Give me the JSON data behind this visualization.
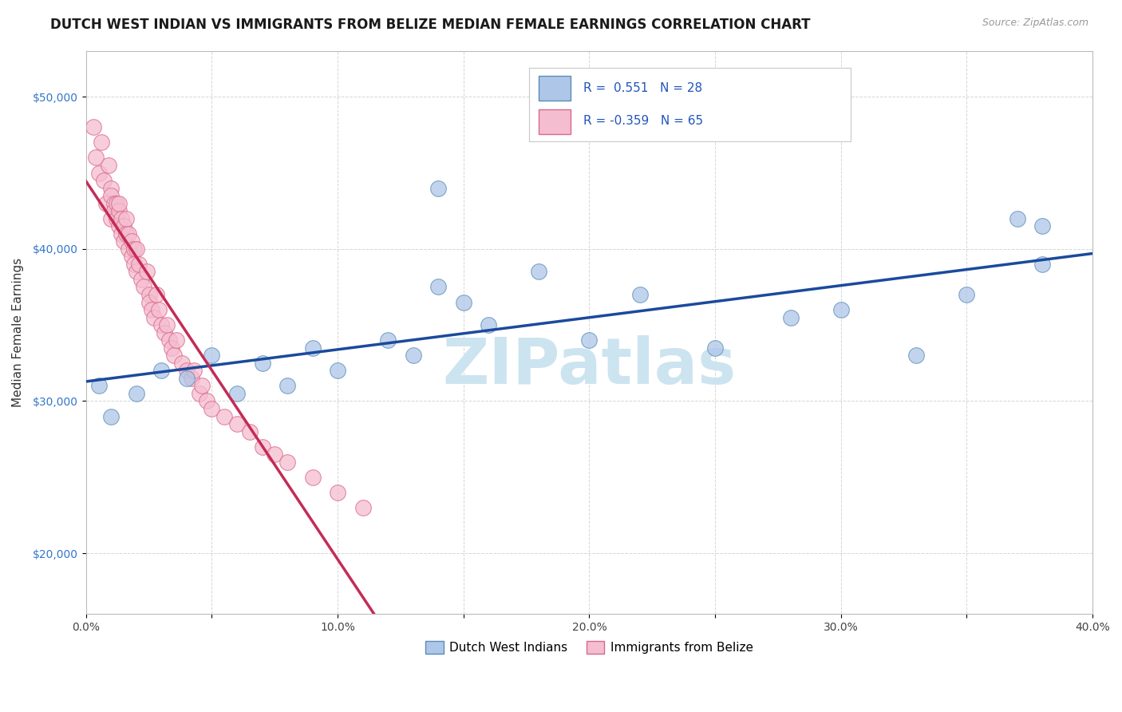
{
  "title": "DUTCH WEST INDIAN VS IMMIGRANTS FROM BELIZE MEDIAN FEMALE EARNINGS CORRELATION CHART",
  "source_text": "Source: ZipAtlas.com",
  "ylabel": "Median Female Earnings",
  "xlim": [
    0.0,
    0.4
  ],
  "ylim": [
    16000,
    53000
  ],
  "xticks": [
    0.0,
    0.05,
    0.1,
    0.15,
    0.2,
    0.25,
    0.3,
    0.35,
    0.4
  ],
  "xticklabels": [
    "0.0%",
    "",
    "10.0%",
    "",
    "20.0%",
    "",
    "30.0%",
    "",
    "40.0%"
  ],
  "yticks": [
    20000,
    30000,
    40000,
    50000
  ],
  "yticklabels": [
    "$20,000",
    "$30,000",
    "$40,000",
    "$50,000"
  ],
  "blue_color": "#aec6e8",
  "blue_edge": "#5b8db8",
  "pink_color": "#f5bdd0",
  "pink_edge": "#d8698a",
  "blue_line_color": "#1a4a9c",
  "pink_line_color": "#c42b55",
  "blue_R": 0.551,
  "blue_N": 28,
  "pink_R": -0.359,
  "pink_N": 65,
  "legend_label_blue": "Dutch West Indians",
  "legend_label_pink": "Immigrants from Belize",
  "watermark": "ZIPatlas",
  "blue_scatter_x": [
    0.005,
    0.01,
    0.02,
    0.03,
    0.04,
    0.05,
    0.06,
    0.07,
    0.08,
    0.09,
    0.1,
    0.12,
    0.13,
    0.14,
    0.15,
    0.16,
    0.18,
    0.2,
    0.22,
    0.25,
    0.28,
    0.3,
    0.33,
    0.35,
    0.37,
    0.38,
    0.38,
    0.14
  ],
  "blue_scatter_y": [
    31000,
    29000,
    30500,
    32000,
    31500,
    33000,
    30500,
    32500,
    31000,
    33500,
    32000,
    34000,
    33000,
    37500,
    36500,
    35000,
    38500,
    34000,
    37000,
    33500,
    35500,
    36000,
    33000,
    37000,
    42000,
    39000,
    41500,
    44000
  ],
  "pink_scatter_x": [
    0.003,
    0.004,
    0.005,
    0.006,
    0.007,
    0.008,
    0.009,
    0.01,
    0.01,
    0.01,
    0.011,
    0.011,
    0.012,
    0.012,
    0.013,
    0.013,
    0.013,
    0.014,
    0.014,
    0.015,
    0.015,
    0.016,
    0.016,
    0.017,
    0.017,
    0.018,
    0.018,
    0.019,
    0.019,
    0.02,
    0.02,
    0.021,
    0.022,
    0.023,
    0.024,
    0.025,
    0.025,
    0.026,
    0.027,
    0.028,
    0.029,
    0.03,
    0.031,
    0.032,
    0.033,
    0.034,
    0.035,
    0.036,
    0.038,
    0.04,
    0.042,
    0.043,
    0.045,
    0.046,
    0.048,
    0.05,
    0.055,
    0.06,
    0.065,
    0.07,
    0.075,
    0.08,
    0.09,
    0.1,
    0.11
  ],
  "pink_scatter_y": [
    48000,
    46000,
    45000,
    47000,
    44500,
    43000,
    45500,
    42000,
    44000,
    43500,
    43000,
    42500,
    42000,
    43000,
    41500,
    42500,
    43000,
    41000,
    42000,
    41500,
    40500,
    41000,
    42000,
    40000,
    41000,
    40500,
    39500,
    40000,
    39000,
    38500,
    40000,
    39000,
    38000,
    37500,
    38500,
    37000,
    36500,
    36000,
    35500,
    37000,
    36000,
    35000,
    34500,
    35000,
    34000,
    33500,
    33000,
    34000,
    32500,
    32000,
    31500,
    32000,
    30500,
    31000,
    30000,
    29500,
    29000,
    28500,
    28000,
    27000,
    26500,
    26000,
    25000,
    24000,
    23000
  ],
  "grid_color": "#cccccc",
  "bg_color": "#ffffff",
  "watermark_color": "#cce4f0",
  "title_fontsize": 12,
  "axis_fontsize": 11,
  "tick_fontsize": 10
}
